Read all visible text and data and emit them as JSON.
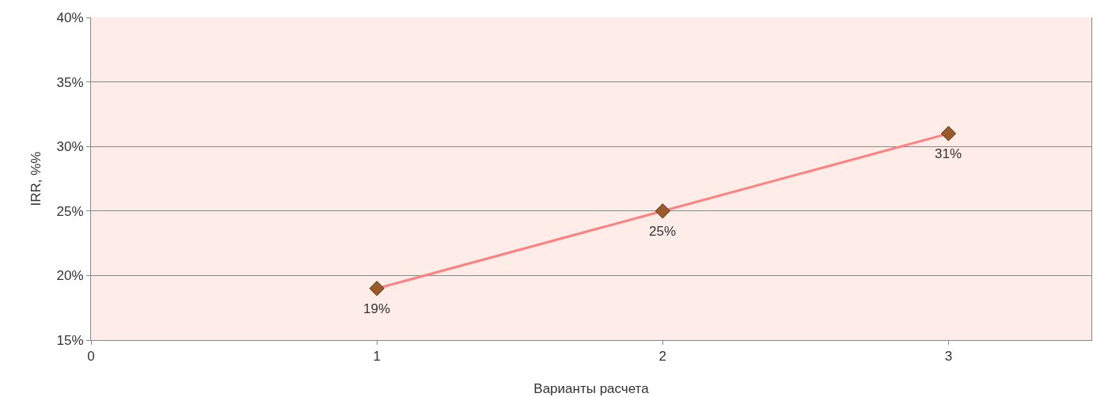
{
  "chart_data": {
    "type": "line",
    "xlabel": "Варианты расчета",
    "ylabel": "IRR, %%",
    "x": [
      1,
      2,
      3
    ],
    "series": [
      {
        "color": "#ff8080",
        "colors": [
          "#9a5a2a",
          "#9a5a2a",
          "#9a5a2a"
        ],
        "values": [
          19,
          25,
          31
        ],
        "value_labels": [
          "19%",
          "25%",
          "31%"
        ]
      }
    ],
    "xlim": [
      0,
      3.5
    ],
    "xticks": [
      0,
      1,
      2,
      3
    ],
    "ylim": [
      15,
      40
    ],
    "yticks": [
      {
        "value": 15,
        "label": "15%"
      },
      {
        "value": 20,
        "label": "20%"
      },
      {
        "value": 25,
        "label": "25%"
      },
      {
        "value": 30,
        "label": "30%"
      },
      {
        "value": 35,
        "label": "35%"
      },
      {
        "value": 40,
        "label": "40%"
      }
    ],
    "grid": "y",
    "marker": "diamond",
    "line_style": "solid"
  }
}
